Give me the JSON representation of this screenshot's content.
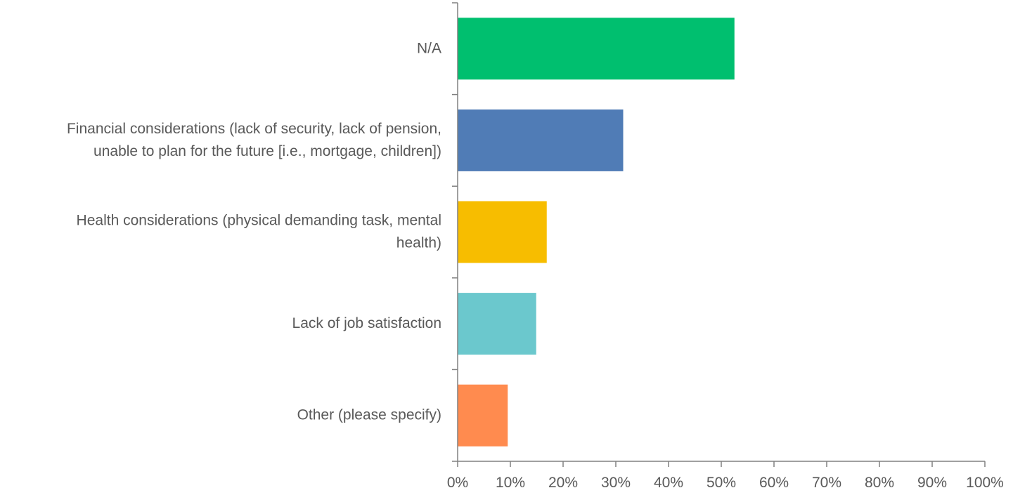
{
  "chart_data": {
    "type": "bar",
    "orientation": "horizontal",
    "categories": [
      [
        "N/A"
      ],
      [
        "Financial considerations (lack of security, lack of pension,",
        "unable to plan for the future [i.e., mortgage, children])"
      ],
      [
        "Health considerations (physical demanding task, mental",
        "health)"
      ],
      [
        "Lack of job satisfaction"
      ],
      [
        "Other (please specify)"
      ]
    ],
    "values": [
      52.5,
      31.4,
      16.9,
      14.9,
      9.5
    ],
    "bar_colors": [
      "#00bf6f",
      "#507cb6",
      "#f7bd00",
      "#6bc8cd",
      "#ff8b4f"
    ],
    "xlim": [
      0,
      100
    ],
    "xticks": [
      "0%",
      "10%",
      "20%",
      "30%",
      "40%",
      "50%",
      "60%",
      "70%",
      "80%",
      "90%",
      "100%"
    ],
    "axis_color": "#808080",
    "grid": false,
    "title": "",
    "xlabel": "",
    "ylabel": ""
  }
}
